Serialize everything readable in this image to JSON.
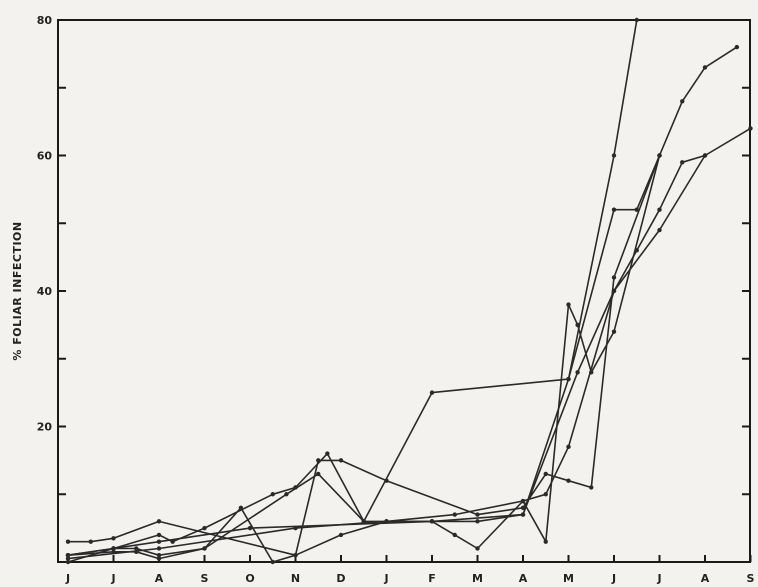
{
  "chart_data": {
    "type": "line",
    "ylabel": "% FOLIAR INFECTION",
    "xlabel": "",
    "ylim": [
      0,
      80
    ],
    "y_ticks": [
      0,
      10,
      20,
      30,
      40,
      50,
      60,
      70,
      80
    ],
    "y_tick_labels": [
      "",
      "",
      "20",
      "",
      "40",
      "",
      "60",
      "",
      "80"
    ],
    "categories": [
      "J",
      "J",
      "A",
      "S",
      "O",
      "N",
      "D",
      "J",
      "F",
      "M",
      "A",
      "M",
      "J",
      "J",
      "A",
      "S"
    ],
    "xlim": [
      0,
      15.9
    ],
    "grid": false,
    "series": [
      {
        "values": [
          [
            0,
            1
          ],
          [
            1,
            2
          ],
          [
            1.5,
            2
          ],
          [
            2,
            1
          ],
          [
            3,
            2
          ],
          [
            3.8,
            8
          ],
          [
            4.5,
            0
          ],
          [
            5,
            1
          ],
          [
            6,
            4
          ],
          [
            7,
            6
          ],
          [
            8,
            6
          ],
          [
            8.5,
            4
          ],
          [
            9,
            2
          ],
          [
            10,
            9
          ],
          [
            10.5,
            3
          ],
          [
            11,
            38
          ],
          [
            11.2,
            35
          ],
          [
            11.5,
            28
          ],
          [
            12,
            34
          ],
          [
            13,
            60
          ]
        ]
      },
      {
        "values": [
          [
            0,
            3
          ],
          [
            0.5,
            3
          ],
          [
            1,
            3.5
          ],
          [
            2,
            6
          ],
          [
            5,
            1
          ],
          [
            5.5,
            15
          ],
          [
            6,
            15
          ],
          [
            7,
            12
          ],
          [
            9,
            7
          ],
          [
            10,
            8
          ],
          [
            10.5,
            13
          ],
          [
            11,
            12
          ],
          [
            11.5,
            11
          ],
          [
            12,
            42
          ],
          [
            13,
            60
          ]
        ]
      },
      {
        "values": [
          [
            0,
            0.5
          ],
          [
            2,
            2
          ],
          [
            5,
            5
          ],
          [
            7,
            6
          ],
          [
            8.5,
            7
          ],
          [
            10,
            9
          ],
          [
            10.5,
            10
          ],
          [
            11,
            17
          ],
          [
            12,
            40
          ],
          [
            13,
            49
          ],
          [
            14,
            60
          ],
          [
            15,
            64
          ]
        ]
      },
      {
        "values": [
          [
            0,
            1
          ],
          [
            1,
            1.5
          ],
          [
            1.5,
            1.5
          ],
          [
            2,
            0.5
          ],
          [
            3,
            2
          ],
          [
            4.8,
            10
          ],
          [
            5.5,
            13
          ],
          [
            6.5,
            6
          ],
          [
            8,
            25
          ],
          [
            11,
            27
          ],
          [
            12,
            60
          ],
          [
            12.5,
            80
          ]
        ]
      },
      {
        "values": [
          [
            0,
            0
          ],
          [
            1,
            2
          ],
          [
            2,
            4
          ],
          [
            2.3,
            3
          ],
          [
            3,
            5
          ],
          [
            4.5,
            10
          ],
          [
            5,
            11
          ],
          [
            5.7,
            16
          ],
          [
            6.5,
            6
          ],
          [
            8,
            6
          ],
          [
            9,
            6
          ],
          [
            10,
            7
          ],
          [
            11,
            27
          ],
          [
            12,
            52
          ],
          [
            12.5,
            52
          ],
          [
            13,
            60
          ],
          [
            13.5,
            68
          ],
          [
            14,
            73
          ],
          [
            14.7,
            76
          ]
        ]
      },
      {
        "values": [
          [
            0,
            1
          ],
          [
            1,
            2
          ],
          [
            2,
            3
          ],
          [
            4,
            5
          ],
          [
            8,
            6
          ],
          [
            10,
            7
          ],
          [
            11.2,
            28
          ],
          [
            12,
            40
          ],
          [
            12.5,
            46
          ],
          [
            13,
            52
          ],
          [
            13.5,
            59
          ],
          [
            14,
            60
          ]
        ]
      }
    ]
  }
}
